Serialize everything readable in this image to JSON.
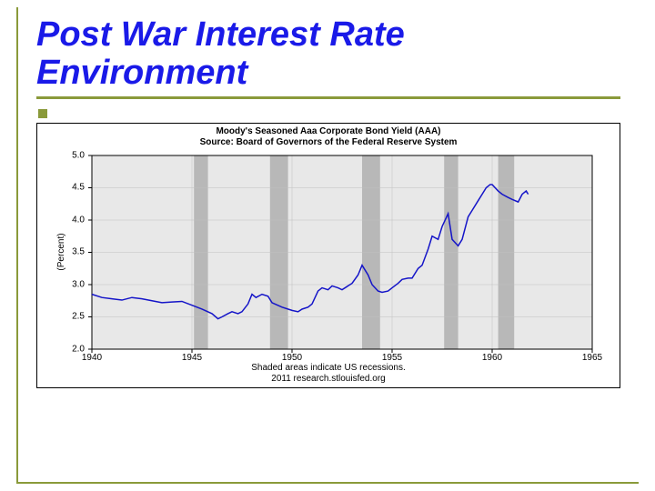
{
  "title": "Post War Interest Rate Environment",
  "chart": {
    "type": "line",
    "title_line1": "Moody's Seasoned Aaa Corporate Bond Yield (AAA)",
    "title_line2": "Source: Board of Governors of the Federal Reserve System",
    "ylabel": "(Percent)",
    "title_fontsize": 10,
    "label_fontsize": 10,
    "xlim": [
      1940,
      1965
    ],
    "ylim": [
      2.0,
      5.0
    ],
    "ytick_step": 0.5,
    "xtick_step": 5,
    "xticks": [
      "1940",
      "1945",
      "1950",
      "1955",
      "1960",
      "1965"
    ],
    "yticks": [
      "2.0",
      "2.5",
      "3.0",
      "3.5",
      "4.0",
      "4.5",
      "5.0"
    ],
    "line_color": "#1414c8",
    "line_width": 1.5,
    "background_color": "#e8e8e8",
    "grid_color": "#c0c0c0",
    "recession_color": "#b8b8b8",
    "axis_color": "#000000",
    "recessions": [
      {
        "start": 1945.1,
        "end": 1945.8
      },
      {
        "start": 1948.9,
        "end": 1949.8
      },
      {
        "start": 1953.5,
        "end": 1954.4
      },
      {
        "start": 1957.6,
        "end": 1958.3
      },
      {
        "start": 1960.3,
        "end": 1961.1
      }
    ],
    "footer_line1": "Shaded areas indicate US recessions.",
    "footer_line2": "2011 research.stlouisfed.org",
    "data": [
      {
        "x": 1940.0,
        "y": 2.85
      },
      {
        "x": 1940.5,
        "y": 2.8
      },
      {
        "x": 1941.0,
        "y": 2.78
      },
      {
        "x": 1941.5,
        "y": 2.76
      },
      {
        "x": 1942.0,
        "y": 2.8
      },
      {
        "x": 1942.5,
        "y": 2.78
      },
      {
        "x": 1943.0,
        "y": 2.75
      },
      {
        "x": 1943.5,
        "y": 2.72
      },
      {
        "x": 1944.0,
        "y": 2.73
      },
      {
        "x": 1944.5,
        "y": 2.74
      },
      {
        "x": 1945.0,
        "y": 2.68
      },
      {
        "x": 1945.5,
        "y": 2.62
      },
      {
        "x": 1946.0,
        "y": 2.55
      },
      {
        "x": 1946.3,
        "y": 2.47
      },
      {
        "x": 1946.5,
        "y": 2.5
      },
      {
        "x": 1946.8,
        "y": 2.55
      },
      {
        "x": 1947.0,
        "y": 2.58
      },
      {
        "x": 1947.3,
        "y": 2.55
      },
      {
        "x": 1947.5,
        "y": 2.58
      },
      {
        "x": 1947.8,
        "y": 2.7
      },
      {
        "x": 1948.0,
        "y": 2.85
      },
      {
        "x": 1948.2,
        "y": 2.8
      },
      {
        "x": 1948.5,
        "y": 2.85
      },
      {
        "x": 1948.8,
        "y": 2.82
      },
      {
        "x": 1949.0,
        "y": 2.72
      },
      {
        "x": 1949.5,
        "y": 2.65
      },
      {
        "x": 1950.0,
        "y": 2.6
      },
      {
        "x": 1950.3,
        "y": 2.58
      },
      {
        "x": 1950.5,
        "y": 2.62
      },
      {
        "x": 1950.8,
        "y": 2.65
      },
      {
        "x": 1951.0,
        "y": 2.7
      },
      {
        "x": 1951.3,
        "y": 2.9
      },
      {
        "x": 1951.5,
        "y": 2.95
      },
      {
        "x": 1951.8,
        "y": 2.92
      },
      {
        "x": 1952.0,
        "y": 2.98
      },
      {
        "x": 1952.3,
        "y": 2.95
      },
      {
        "x": 1952.5,
        "y": 2.92
      },
      {
        "x": 1952.8,
        "y": 2.98
      },
      {
        "x": 1953.0,
        "y": 3.02
      },
      {
        "x": 1953.3,
        "y": 3.15
      },
      {
        "x": 1953.5,
        "y": 3.3
      },
      {
        "x": 1953.8,
        "y": 3.15
      },
      {
        "x": 1954.0,
        "y": 3.0
      },
      {
        "x": 1954.3,
        "y": 2.9
      },
      {
        "x": 1954.5,
        "y": 2.88
      },
      {
        "x": 1954.8,
        "y": 2.9
      },
      {
        "x": 1955.0,
        "y": 2.95
      },
      {
        "x": 1955.3,
        "y": 3.02
      },
      {
        "x": 1955.5,
        "y": 3.08
      },
      {
        "x": 1955.8,
        "y": 3.1
      },
      {
        "x": 1956.0,
        "y": 3.1
      },
      {
        "x": 1956.3,
        "y": 3.25
      },
      {
        "x": 1956.5,
        "y": 3.3
      },
      {
        "x": 1956.8,
        "y": 3.55
      },
      {
        "x": 1957.0,
        "y": 3.75
      },
      {
        "x": 1957.3,
        "y": 3.7
      },
      {
        "x": 1957.5,
        "y": 3.9
      },
      {
        "x": 1957.8,
        "y": 4.1
      },
      {
        "x": 1958.0,
        "y": 3.7
      },
      {
        "x": 1958.3,
        "y": 3.6
      },
      {
        "x": 1958.5,
        "y": 3.7
      },
      {
        "x": 1958.8,
        "y": 4.05
      },
      {
        "x": 1959.0,
        "y": 4.15
      },
      {
        "x": 1959.3,
        "y": 4.3
      },
      {
        "x": 1959.5,
        "y": 4.4
      },
      {
        "x": 1959.7,
        "y": 4.5
      },
      {
        "x": 1959.9,
        "y": 4.55
      },
      {
        "x": 1960.0,
        "y": 4.55
      },
      {
        "x": 1960.3,
        "y": 4.45
      },
      {
        "x": 1960.5,
        "y": 4.4
      },
      {
        "x": 1960.8,
        "y": 4.35
      },
      {
        "x": 1961.0,
        "y": 4.32
      },
      {
        "x": 1961.3,
        "y": 4.28
      },
      {
        "x": 1961.5,
        "y": 4.4
      },
      {
        "x": 1961.7,
        "y": 4.45
      },
      {
        "x": 1961.8,
        "y": 4.4
      }
    ]
  }
}
